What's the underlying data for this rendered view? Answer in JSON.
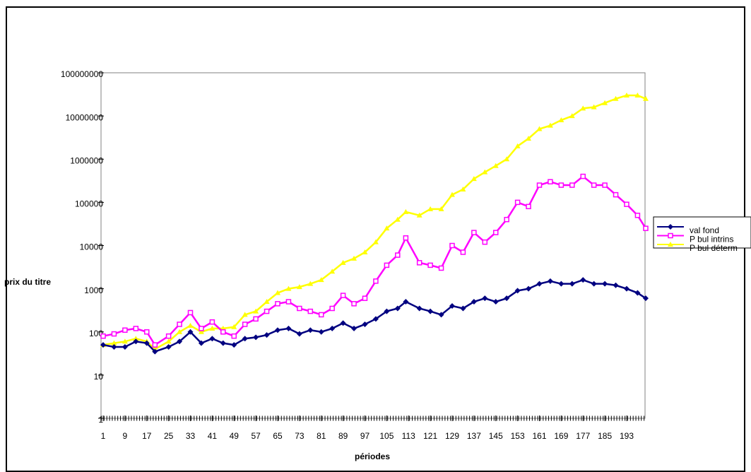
{
  "chart_data": {
    "type": "line",
    "log_scale": true,
    "grid": false,
    "y_label": "prix du titre",
    "x_label": "périodes",
    "legend": "right",
    "x": [
      1,
      5,
      9,
      13,
      17,
      20,
      25,
      29,
      33,
      37,
      41,
      45,
      49,
      53,
      57,
      61,
      65,
      69,
      73,
      77,
      81,
      85,
      89,
      93,
      97,
      101,
      105,
      109,
      112,
      117,
      121,
      125,
      129,
      133,
      137,
      141,
      145,
      149,
      153,
      157,
      161,
      165,
      169,
      173,
      177,
      181,
      185,
      189,
      193,
      197,
      200
    ],
    "xlim": [
      1,
      200
    ],
    "xticks": [
      1,
      9,
      17,
      25,
      33,
      41,
      49,
      57,
      65,
      73,
      81,
      89,
      97,
      105,
      113,
      121,
      129,
      137,
      145,
      153,
      161,
      169,
      177,
      185,
      193
    ],
    "ylim": [
      1,
      100000000
    ],
    "yticks": [
      1,
      10,
      100,
      1000,
      10000,
      100000,
      1000000,
      10000000,
      100000000
    ],
    "series": [
      {
        "name": "val fond",
        "color": "#000080",
        "marker": "diamond",
        "values": [
          50,
          45,
          45,
          60,
          55,
          35,
          45,
          60,
          100,
          55,
          70,
          55,
          50,
          70,
          75,
          85,
          110,
          120,
          90,
          110,
          100,
          120,
          160,
          120,
          150,
          200,
          300,
          350,
          500,
          350,
          300,
          250,
          400,
          350,
          500,
          600,
          500,
          600,
          900,
          1000,
          1300,
          1500,
          1300,
          1300,
          1600,
          1300,
          1300,
          1200,
          1000,
          800,
          600
        ]
      },
      {
        "name": "P bul intrins",
        "color": "#ff00ff",
        "marker": "square",
        "values": [
          80,
          90,
          110,
          120,
          100,
          50,
          80,
          150,
          280,
          120,
          170,
          100,
          80,
          150,
          200,
          300,
          450,
          500,
          350,
          300,
          250,
          350,
          700,
          450,
          600,
          1500,
          3500,
          6000,
          15000,
          4000,
          3500,
          3000,
          10000,
          7000,
          20000,
          12000,
          20000,
          40000,
          100000,
          80000,
          250000,
          300000,
          250000,
          250000,
          400000,
          250000,
          250000,
          150000,
          90000,
          50000,
          25000
        ]
      },
      {
        "name": "P bul déterm",
        "color": "#ffff00",
        "marker": "triangle",
        "values": [
          50,
          55,
          60,
          70,
          60,
          40,
          60,
          100,
          140,
          100,
          120,
          120,
          130,
          250,
          300,
          500,
          800,
          1000,
          1100,
          1300,
          1600,
          2500,
          4000,
          5000,
          7000,
          12000,
          25000,
          40000,
          60000,
          50000,
          70000,
          70000,
          150000,
          200000,
          350000,
          500000,
          700000,
          1000000,
          2000000,
          3000000,
          5000000,
          6000000,
          8000000,
          10000000,
          15000000,
          16000000,
          20000000,
          25000000,
          30000000,
          30000000,
          25000000
        ]
      }
    ]
  }
}
